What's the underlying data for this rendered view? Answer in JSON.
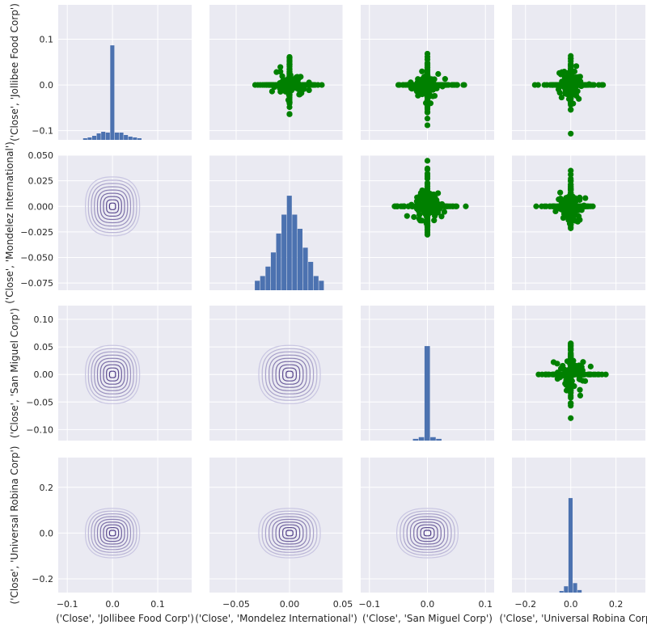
{
  "chart_data": {
    "type": "pairgrid",
    "variables": [
      "('Close', 'Jollibee Food Corp')",
      "('Close', 'Mondelez International')",
      "('Close', 'San Miguel Corp')",
      "('Close', 'Universal Robina Corp')"
    ],
    "y_labels": [
      "('Close', 'Jollibee Food Corp')",
      "('Close', 'Mondelez International')",
      "('Close', 'San Miguel Corp')",
      "('Close', 'Universal Robina Corp')"
    ],
    "x_labels": [
      "('Close', 'Jollibee Food Corp')",
      "('Close', 'Mondelez International')",
      "('Close', 'San Miguel Corp')",
      "('Close', 'Universal Robina Corp')"
    ],
    "x_ranges": [
      [
        -0.12,
        0.175
      ],
      [
        -0.075,
        0.05
      ],
      [
        -0.115,
        0.115
      ],
      [
        -0.26,
        0.33
      ]
    ],
    "y_ranges": [
      [
        -0.12,
        0.175
      ],
      [
        -0.082,
        0.05
      ],
      [
        -0.12,
        0.125
      ],
      [
        -0.26,
        0.33
      ]
    ],
    "x_ticks": [
      {
        "values": [
          -0.1,
          0.0,
          0.1
        ],
        "labels": [
          "−0.1",
          "0.0",
          "0.1"
        ]
      },
      {
        "values": [
          -0.05,
          0.0,
          0.05
        ],
        "labels": [
          "−0.05",
          "0.00",
          "0.05"
        ]
      },
      {
        "values": [
          -0.1,
          0.0,
          0.1
        ],
        "labels": [
          "−0.1",
          "0.0",
          "0.1"
        ]
      },
      {
        "values": [
          -0.2,
          0.0,
          0.2
        ],
        "labels": [
          "−0.2",
          "0.0",
          "0.2"
        ]
      }
    ],
    "y_ticks": [
      {
        "values": [
          -0.1,
          0.0,
          0.1
        ],
        "labels": [
          "−0.1",
          "0.0",
          "0.1"
        ]
      },
      {
        "values": [
          -0.075,
          -0.05,
          -0.025,
          0.0,
          0.025,
          0.05
        ],
        "labels": [
          "−0.075",
          "−0.050",
          "−0.025",
          "0.000",
          "0.025",
          "0.050"
        ]
      },
      {
        "values": [
          -0.1,
          -0.05,
          0.0,
          0.05,
          0.1
        ],
        "labels": [
          "−0.10",
          "−0.05",
          "0.00",
          "0.05",
          "0.10"
        ]
      },
      {
        "values": [
          -0.2,
          0.0,
          0.2
        ],
        "labels": [
          "−0.2",
          "0.0",
          "0.2"
        ]
      }
    ],
    "diagonal": "histogram",
    "upper": "scatter",
    "lower": "kde",
    "colors": {
      "panel_bg": "#eaeaf2",
      "grid": "#ffffff",
      "hist": "#4c72b0",
      "scatter": "#008000",
      "kde_outer": "#c9c6e2",
      "kde_inner": "#3f2a7a",
      "text": "#262626"
    },
    "histograms": [
      {
        "bins": [
          -0.06,
          -0.05,
          -0.04,
          -0.03,
          -0.02,
          -0.01,
          0.0,
          0.01,
          0.02,
          0.03,
          0.04,
          0.05,
          0.06
        ],
        "counts": [
          0.002,
          0.003,
          0.005,
          0.008,
          0.01,
          0.009,
          0.117,
          0.009,
          0.009,
          0.006,
          0.004,
          0.003,
          0.002
        ]
      },
      {
        "bins": [
          -0.03,
          -0.025,
          -0.02,
          -0.015,
          -0.01,
          -0.005,
          0.0,
          0.005,
          0.01,
          0.015,
          0.02,
          0.025,
          0.03
        ],
        "counts": [
          0.002,
          0.003,
          0.005,
          0.008,
          0.012,
          0.016,
          0.02,
          0.016,
          0.013,
          0.009,
          0.006,
          0.003,
          0.002
        ]
      },
      {
        "bins": [
          -0.02,
          -0.01,
          0.0,
          0.01,
          0.02
        ],
        "counts": [
          0.002,
          0.004,
          0.11,
          0.004,
          0.002
        ]
      },
      {
        "bins": [
          -0.04,
          -0.02,
          0.0,
          0.02,
          0.04
        ],
        "counts": [
          0.005,
          0.02,
          0.3,
          0.03,
          0.008
        ]
      }
    ],
    "scatter_seed": 42,
    "scatter_count": 260
  }
}
